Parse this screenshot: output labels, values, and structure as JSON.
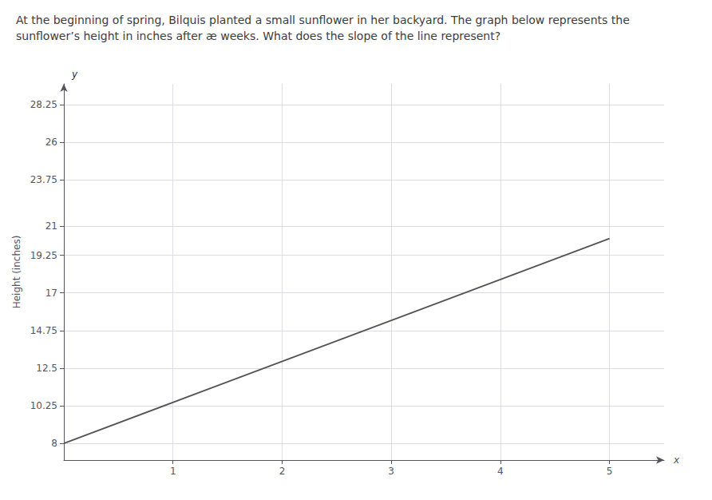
{
  "chart_data": {
    "type": "line",
    "title": "At the beginning of spring, Bilquis planted a small sunflower in her backyard. The graph below represents the sunflower’s height in inches after æ weeks. What does the slope of the line represent?",
    "xlabel": "x",
    "ylabel": "Height (inches)",
    "annotations": [
      "y"
    ],
    "x": [
      0,
      5
    ],
    "values": [
      8,
      20.25
    ],
    "color": "#555555",
    "xlim": [
      0,
      5.5
    ],
    "ylim": [
      7.0,
      29.5
    ],
    "xticks": [
      1,
      2,
      3,
      4,
      5
    ],
    "yticks": [
      8,
      10.25,
      12.5,
      14.75,
      17,
      19.25,
      21,
      23.75,
      26,
      28.25
    ],
    "grid": true
  }
}
